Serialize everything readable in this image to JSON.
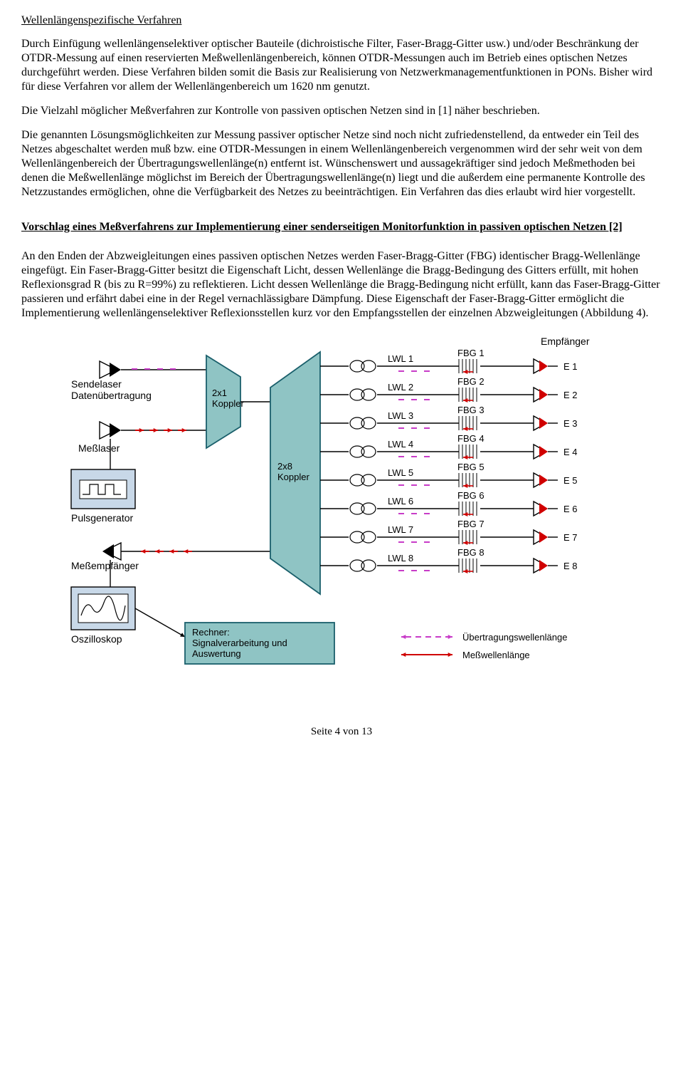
{
  "section1": {
    "title": "Wellenlängenspezifische Verfahren",
    "p1": "Durch Einfügung wellenlängenselektiver optischer Bauteile (dichroistische Filter, Faser-Bragg-Gitter usw.) und/oder Beschränkung der OTDR-Messung auf einen reservierten Meßwellenlängenbereich, können OTDR-Messungen auch im Betrieb eines optischen Netzes durchgeführt werden. Diese Verfahren bilden somit die Basis zur Realisierung von Netzwerkmanagementfunktionen in PONs. Bisher wird für diese Verfahren vor allem der Wellenlängenbereich um 1620 nm genutzt.",
    "p2": "Die Vielzahl möglicher Meßverfahren zur Kontrolle von passiven optischen Netzen sind in [1] näher beschrieben.",
    "p3": "Die genannten Lösungsmöglichkeiten zur Messung passiver optischer Netze sind noch nicht zufriedenstellend, da entweder ein Teil des Netzes abgeschaltet werden muß bzw. eine OTDR-Messungen in einem Wellenlängenbereich vergenommen wird der sehr weit von dem Wellenlängenbereich der Übertragungswellenlänge(n) entfernt ist. Wünschenswert und aussagekräftiger sind jedoch Meßmethoden bei denen die Meßwellenlänge möglichst im Bereich der Übertragungswellenlänge(n) liegt und die außerdem eine permanente Kontrolle des Netzzustandes ermöglichen, ohne die Verfügbarkeit des Netzes zu beeinträchtigen. Ein Verfahren das dies erlaubt wird hier vorgestellt."
  },
  "section2": {
    "title": "Vorschlag eines Meßverfahrens zur Implementierung einer senderseitigen Monitorfunktion in passiven optischen Netzen [2]",
    "p1": "An den Enden der Abzweigleitungen eines passiven optischen Netzes werden Faser-Bragg-Gitter (FBG) identischer Bragg-Wellenlänge eingefügt. Ein Faser-Bragg-Gitter besitzt die Eigenschaft Licht, dessen Wellenlänge die Bragg-Bedingung des Gitters erfüllt, mit hohen Reflexionsgrad R (bis zu R=99%) zu reflektieren. Licht dessen Wellenlänge die Bragg-Bedingung nicht erfüllt, kann das Faser-Bragg-Gitter passieren und erfährt dabei eine in der Regel vernachlässigbare Dämpfung. Diese Eigenschaft der Faser-Bragg-Gitter ermöglicht die Implementierung wellenlängenselektiver Reflexionsstellen kurz vor den Empfangsstellen der einzelnen Abzweigleitungen (Abbildung 4)."
  },
  "diagram": {
    "labels": {
      "sendelaser": "Sendelaser\nDatenübertragung",
      "messlaser": "Meßlaser",
      "pulsgen": "Pulsgenerator",
      "messempf": "Meßempfänger",
      "oszilloskop": "Oszilloskop",
      "rechner": "Rechner:\nSignalverarbeitung und\nAuswertung",
      "koppler21": "2x1\nKoppler",
      "koppler28": "2x8\nKoppler",
      "empfanger": "Empfänger",
      "ubertragung": "Übertragungswellenlänge",
      "messwelle": "Meßwellenlänge"
    },
    "lwl": [
      "LWL 1",
      "LWL 2",
      "LWL 3",
      "LWL 4",
      "LWL 5",
      "LWL 6",
      "LWL 7",
      "LWL 8"
    ],
    "fbg": [
      "FBG 1",
      "FBG 2",
      "FBG 3",
      "FBG 4",
      "FBG 5",
      "FBG 6",
      "FBG 7",
      "FBG 8"
    ],
    "e": [
      "E 1",
      "E 2",
      "E 3",
      "E 4",
      "E 5",
      "E 6",
      "E 7",
      "E 8"
    ],
    "colors": {
      "block_fill": "#8fc4c4",
      "block_stroke": "#1a5f6b",
      "osc_fill": "#c8d8e8",
      "line": "#000000",
      "magenta": "#c83cc8",
      "red": "#d00000",
      "bg": "#ffffff"
    },
    "font_family": "Arial, Helvetica, sans-serif",
    "font_size_label": 14,
    "font_size_small": 13,
    "stroke_width": 1.4,
    "stroke_width_thick": 1.8
  },
  "footer": "Seite 4 von 13"
}
